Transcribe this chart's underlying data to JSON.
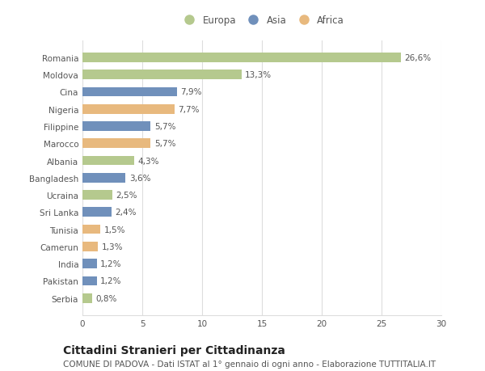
{
  "countries": [
    "Romania",
    "Moldova",
    "Cina",
    "Nigeria",
    "Filippine",
    "Marocco",
    "Albania",
    "Bangladesh",
    "Ucraina",
    "Sri Lanka",
    "Tunisia",
    "Camerun",
    "India",
    "Pakistan",
    "Serbia"
  ],
  "values": [
    26.6,
    13.3,
    7.9,
    7.7,
    5.7,
    5.7,
    4.3,
    3.6,
    2.5,
    2.4,
    1.5,
    1.3,
    1.2,
    1.2,
    0.8
  ],
  "labels": [
    "26,6%",
    "13,3%",
    "7,9%",
    "7,7%",
    "5,7%",
    "5,7%",
    "4,3%",
    "3,6%",
    "2,5%",
    "2,4%",
    "1,5%",
    "1,3%",
    "1,2%",
    "1,2%",
    "0,8%"
  ],
  "continents": [
    "Europa",
    "Europa",
    "Asia",
    "Africa",
    "Asia",
    "Africa",
    "Europa",
    "Asia",
    "Europa",
    "Asia",
    "Africa",
    "Africa",
    "Asia",
    "Asia",
    "Europa"
  ],
  "colors": {
    "Europa": "#b5c98e",
    "Asia": "#7090bb",
    "Africa": "#e8b97e"
  },
  "legend_labels": [
    "Europa",
    "Asia",
    "Africa"
  ],
  "xlim": [
    0,
    30
  ],
  "xticks": [
    0,
    5,
    10,
    15,
    20,
    25,
    30
  ],
  "title": "Cittadini Stranieri per Cittadinanza",
  "subtitle": "COMUNE DI PADOVA - Dati ISTAT al 1° gennaio di ogni anno - Elaborazione TUTTITALIA.IT",
  "bg_color": "#ffffff",
  "grid_color": "#dddddd",
  "bar_height": 0.55,
  "label_fontsize": 7.5,
  "tick_fontsize": 7.5,
  "title_fontsize": 10,
  "subtitle_fontsize": 7.5,
  "legend_fontsize": 8.5
}
